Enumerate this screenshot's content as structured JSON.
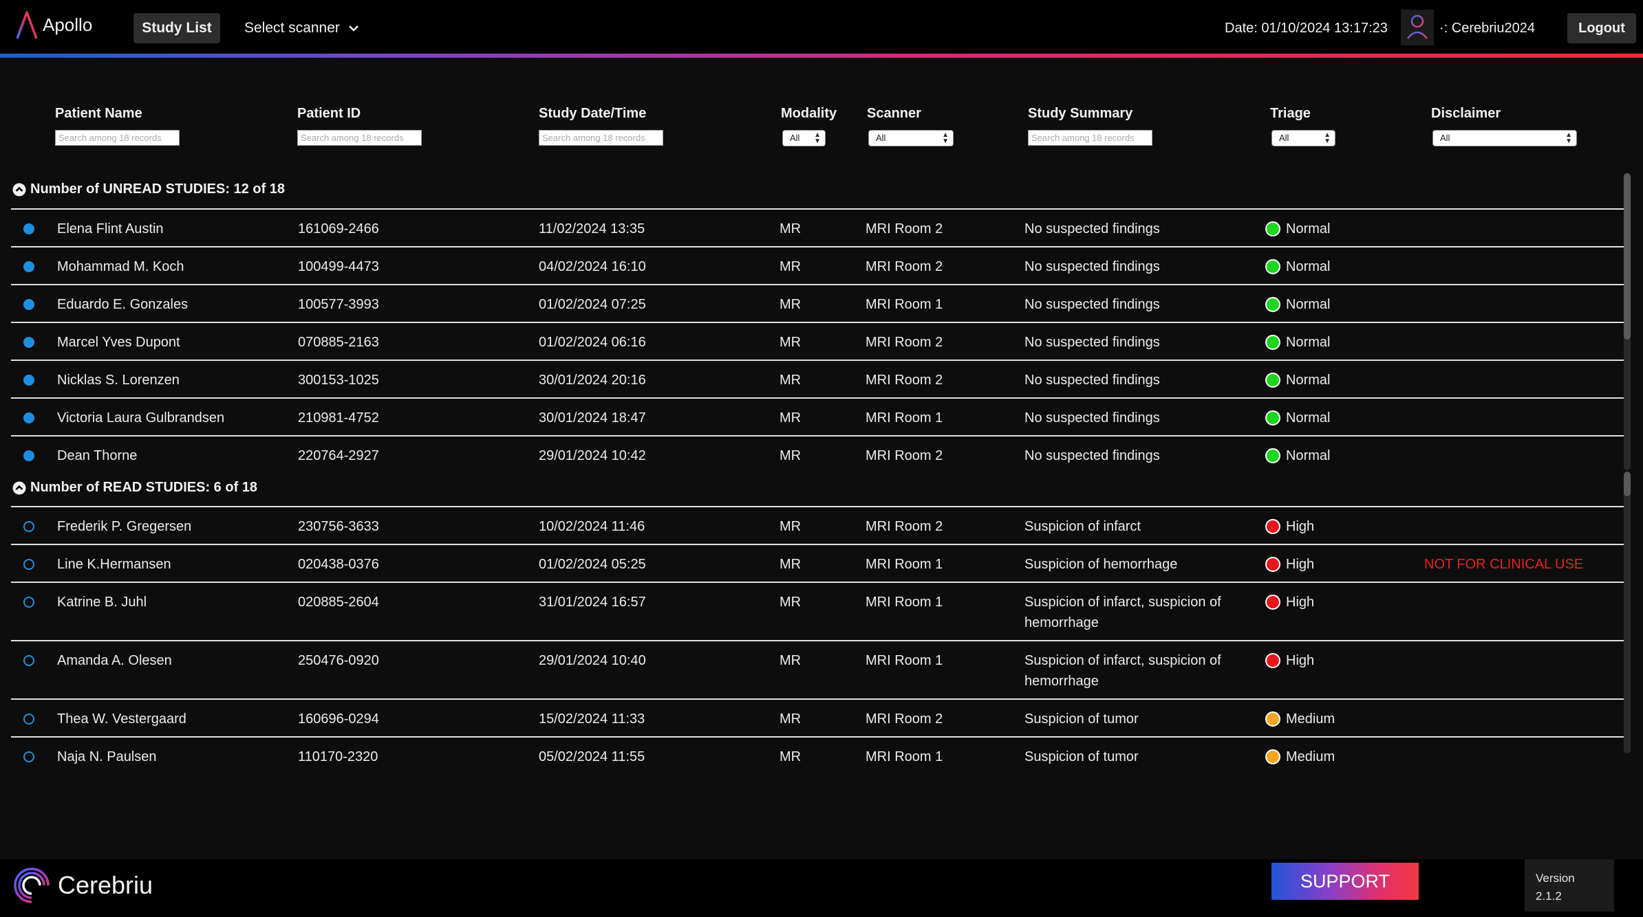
{
  "header": {
    "app_name": "Apollo",
    "nav_study_list": "Study List",
    "scanner_select": "Select scanner",
    "datetime": "Date: 01/10/2024 13:17:23",
    "user": "·: Cerebriu2024",
    "logout": "Logout"
  },
  "columns": {
    "patient_name": "Patient Name",
    "patient_id": "Patient ID",
    "study_datetime": "Study Date/Time",
    "modality": "Modality",
    "scanner": "Scanner",
    "study_summary": "Study Summary",
    "triage": "Triage",
    "disclaimer": "Disclaimer"
  },
  "filters": {
    "search_placeholder": "Search among 18 records",
    "select_all": "All"
  },
  "unread_section": {
    "title": "Number of UNREAD STUDIES: 12 of 18",
    "rows": [
      {
        "name": "Elena Flint Austin",
        "id": "161069-2466",
        "date": "11/02/2024 13:35",
        "modality": "MR",
        "scanner": "MRI Room 2",
        "summary": "No suspected findings",
        "triage": "Normal",
        "disclaimer": ""
      },
      {
        "name": "Mohammad M. Koch",
        "id": "100499-4473",
        "date": "04/02/2024 16:10",
        "modality": "MR",
        "scanner": "MRI Room 2",
        "summary": "No suspected findings",
        "triage": "Normal",
        "disclaimer": ""
      },
      {
        "name": "Eduardo E. Gonzales",
        "id": "100577-3993",
        "date": "01/02/2024 07:25",
        "modality": "MR",
        "scanner": "MRI Room 1",
        "summary": "No suspected findings",
        "triage": "Normal",
        "disclaimer": ""
      },
      {
        "name": "Marcel Yves Dupont",
        "id": "070885-2163",
        "date": "01/02/2024 06:16",
        "modality": "MR",
        "scanner": "MRI Room 2",
        "summary": "No suspected findings",
        "triage": "Normal",
        "disclaimer": ""
      },
      {
        "name": "Nicklas S. Lorenzen",
        "id": "300153-1025",
        "date": "30/01/2024 20:16",
        "modality": "MR",
        "scanner": "MRI Room 2",
        "summary": "No suspected findings",
        "triage": "Normal",
        "disclaimer": ""
      },
      {
        "name": "Victoria Laura Gulbrandsen",
        "id": "210981-4752",
        "date": "30/01/2024 18:47",
        "modality": "MR",
        "scanner": "MRI Room 1",
        "summary": "No suspected findings",
        "triage": "Normal",
        "disclaimer": ""
      },
      {
        "name": "Dean Thorne",
        "id": "220764-2927",
        "date": "29/01/2024 10:42",
        "modality": "MR",
        "scanner": "MRI Room 2",
        "summary": "No suspected findings",
        "triage": "Normal",
        "disclaimer": ""
      }
    ]
  },
  "read_section": {
    "title": "Number of READ STUDIES: 6 of 18",
    "rows": [
      {
        "name": "Frederik P. Gregersen",
        "id": "230756-3633",
        "date": "10/02/2024 11:46",
        "modality": "MR",
        "scanner": "MRI Room 2",
        "summary": "Suspicion of infarct",
        "triage": "High",
        "disclaimer": ""
      },
      {
        "name": "Line K.Hermansen",
        "id": "020438-0376",
        "date": "01/02/2024 05:25",
        "modality": "MR",
        "scanner": "MRI Room 1",
        "summary": "Suspicion of hemorrhage",
        "triage": "High",
        "disclaimer": "NOT FOR CLINICAL USE"
      },
      {
        "name": "Katrine B. Juhl",
        "id": "020885-2604",
        "date": "31/01/2024 16:57",
        "modality": "MR",
        "scanner": "MRI Room 1",
        "summary": "Suspicion of infarct, suspicion of hemorrhage",
        "triage": "High",
        "disclaimer": ""
      },
      {
        "name": "Amanda A. Olesen",
        "id": "250476-0920",
        "date": "29/01/2024 10:40",
        "modality": "MR",
        "scanner": "MRI Room 1",
        "summary": "Suspicion of infarct, suspicion of hemorrhage",
        "triage": "High",
        "disclaimer": ""
      },
      {
        "name": "Thea W. Vestergaard",
        "id": "160696-0294",
        "date": "15/02/2024 11:33",
        "modality": "MR",
        "scanner": "MRI Room 2",
        "summary": "Suspicion of tumor",
        "triage": "Medium",
        "disclaimer": ""
      },
      {
        "name": "Naja N. Paulsen",
        "id": "110170-2320",
        "date": "05/02/2024 11:55",
        "modality": "MR",
        "scanner": "MRI Room 1",
        "summary": "Suspicion of tumor",
        "triage": "Medium",
        "disclaimer": ""
      }
    ]
  },
  "triage_colors": {
    "Normal": "#1ed61e",
    "High": "#e8161b",
    "Medium": "#f5a623"
  },
  "icons": {
    "collapse": "chevron-up-circle-icon",
    "user": "user-icon",
    "dropdown": "chevron-down-icon"
  },
  "footer": {
    "brand": "Cerebriu",
    "support": "SUPPORT",
    "version_label": "Version",
    "version_value": "2.1.2"
  }
}
